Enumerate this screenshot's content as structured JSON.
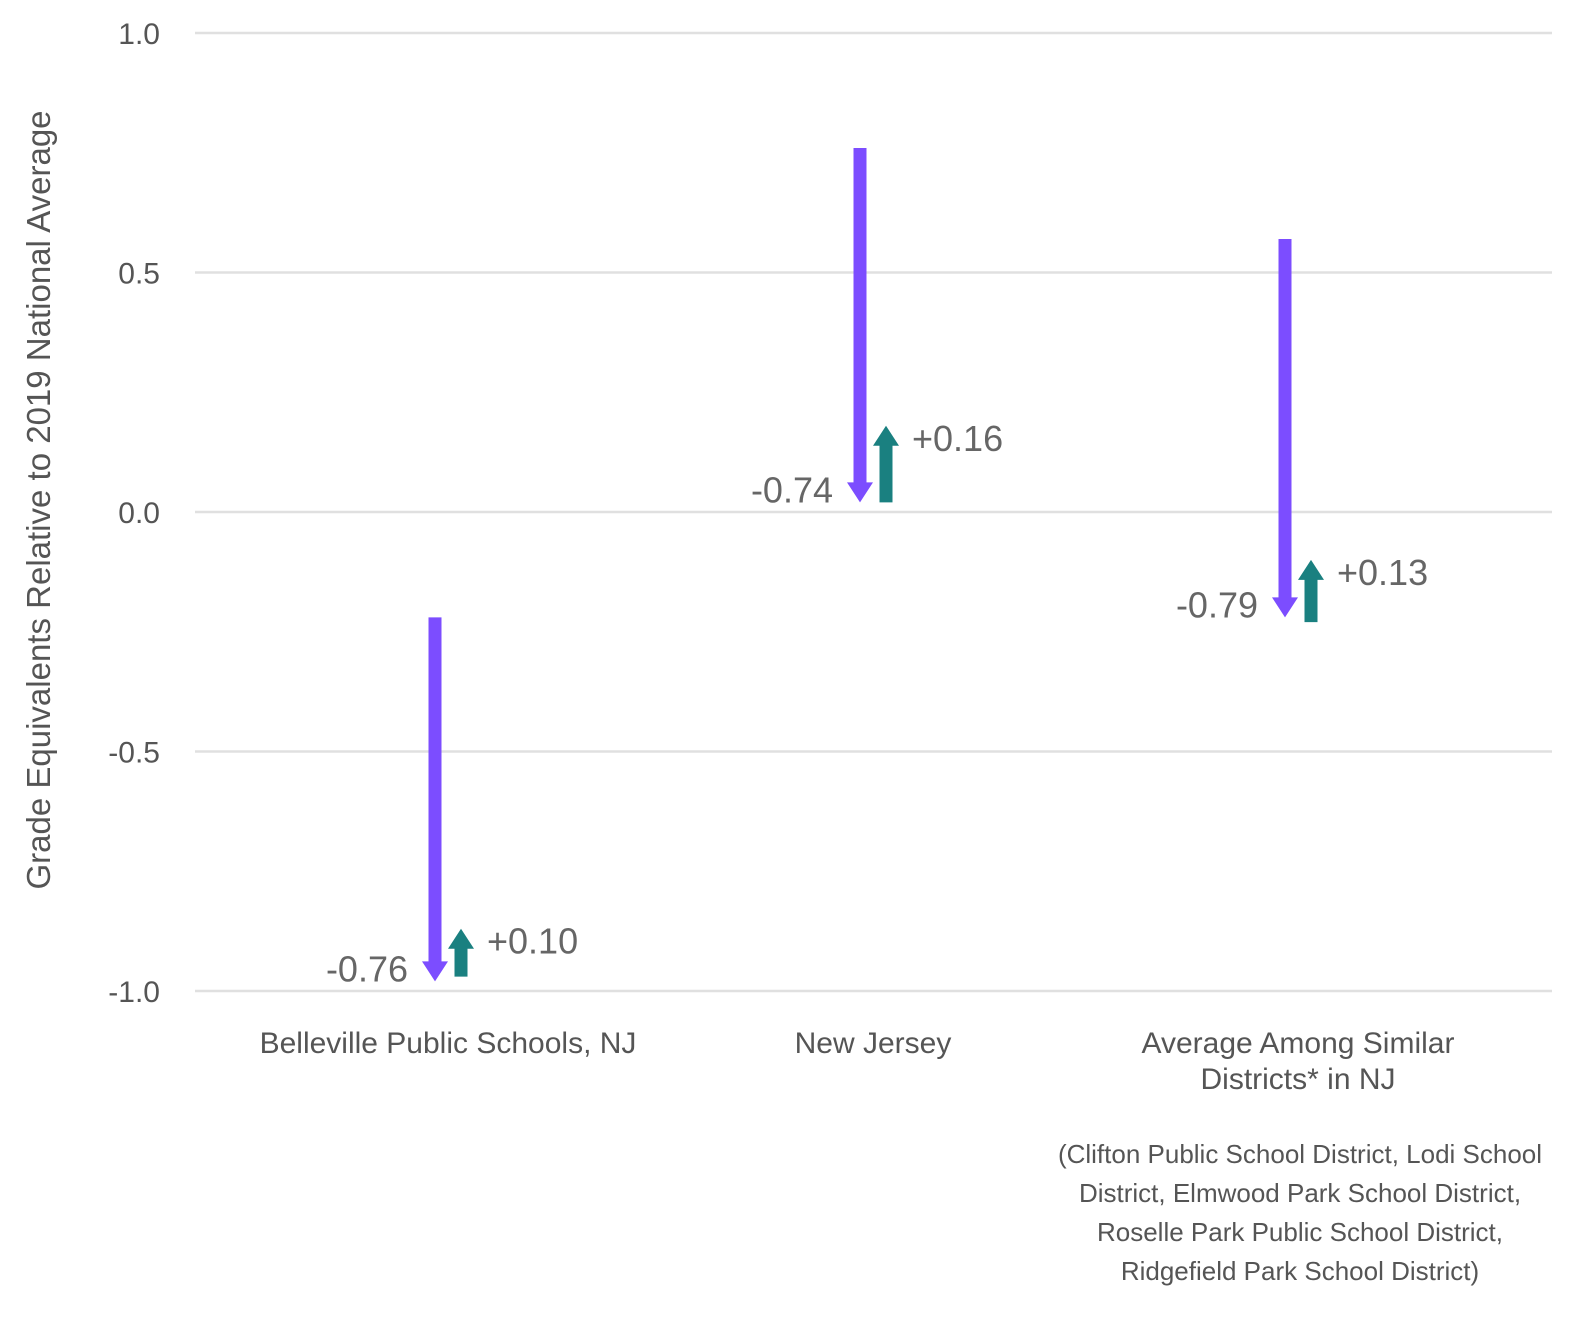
{
  "chart_data": {
    "type": "arrow",
    "ylabel": "Grade Equivalents Relative to 2019 National Average",
    "ylim": [
      -1.0,
      1.0
    ],
    "yticks": [
      1.0,
      0.5,
      0.0,
      -0.5,
      -1.0
    ],
    "ytick_labels": [
      "1.0",
      "0.5",
      "0.0",
      "-0.5",
      "-1.0"
    ],
    "grid": true,
    "categories": [
      "Belleville Public Schools, NJ",
      "New Jersey",
      "Average Among Similar Districts* in NJ"
    ],
    "category_label_lines": [
      [
        "Belleville Public Schools, NJ"
      ],
      [
        "New Jersey"
      ],
      [
        "Average Among Similar",
        "Districts* in NJ"
      ]
    ],
    "footnote_lines": [
      "(Clifton Public School District, Lodi School",
      "District, Elmwood Park School District,",
      "Roselle Park Public School District,",
      "Ridgefield Park School District)"
    ],
    "series": [
      {
        "color": "#7c4dff",
        "direction": "down",
        "start": [
          -0.22,
          0.76,
          0.57
        ],
        "end": [
          -0.98,
          0.02,
          -0.22
        ],
        "values": [
          -0.76,
          -0.74,
          -0.79
        ],
        "labels": [
          "-0.76",
          "-0.74",
          "-0.79"
        ]
      },
      {
        "color": "#1a8080",
        "direction": "up",
        "start": [
          -0.97,
          0.02,
          -0.23
        ],
        "end": [
          -0.87,
          0.18,
          -0.1
        ],
        "values": [
          0.1,
          0.16,
          0.13
        ],
        "labels": [
          "+0.10",
          "+0.16",
          "+0.13"
        ]
      }
    ]
  }
}
